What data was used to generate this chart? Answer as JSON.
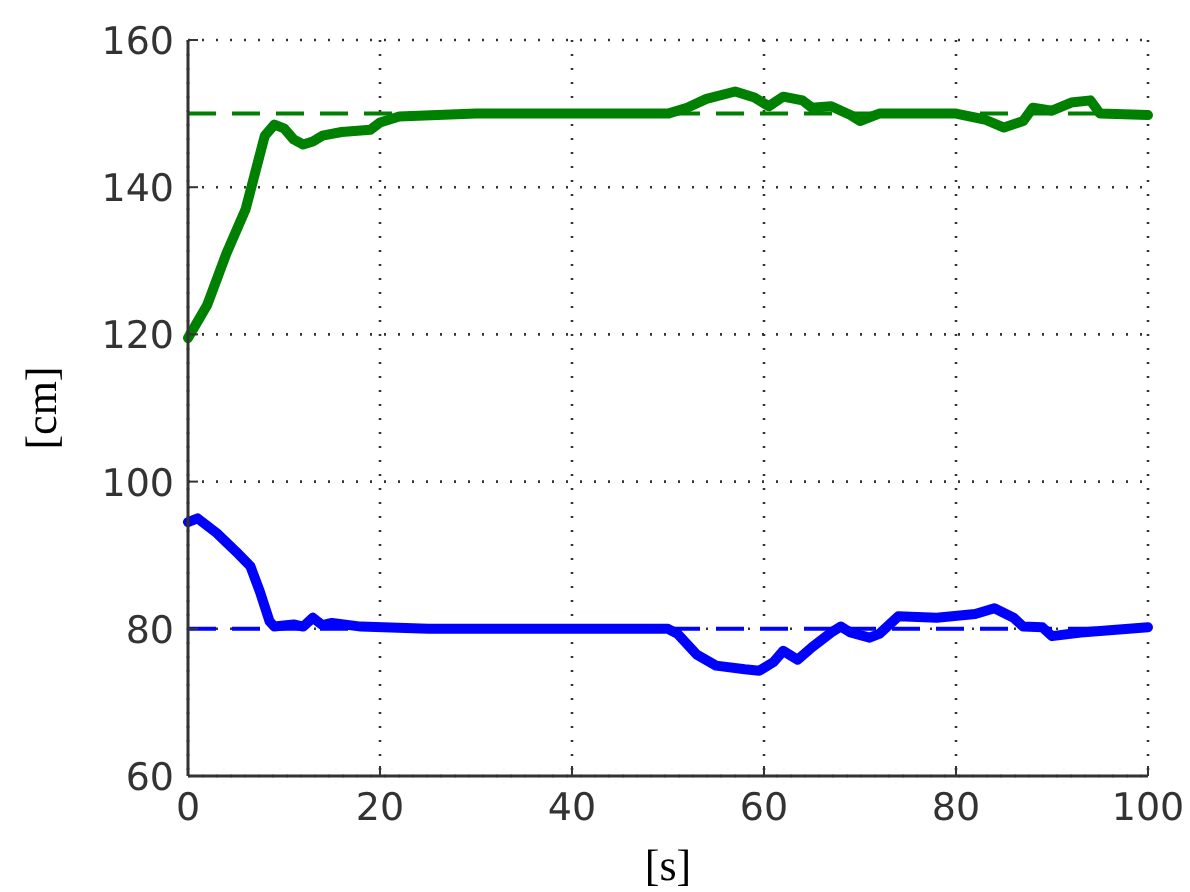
{
  "chart_data": {
    "type": "line",
    "xlabel": "[s]",
    "ylabel": "[cm]",
    "xlim": [
      0,
      100
    ],
    "ylim": [
      60,
      160
    ],
    "xticks": [
      0,
      20,
      40,
      60,
      80,
      100
    ],
    "yticks": [
      60,
      80,
      100,
      120,
      140,
      160
    ],
    "grid": true,
    "line_style": "solid",
    "ref_lines": [
      {
        "axis": "y",
        "value": 150,
        "color": "#008000",
        "line_style": "dashed"
      },
      {
        "axis": "y",
        "value": 80,
        "color": "#0000ff",
        "line_style": "dashed"
      }
    ],
    "series": [
      {
        "color": "#008000",
        "x": [
          0,
          2,
          4,
          6,
          7,
          8,
          9,
          10,
          11,
          12,
          13,
          14,
          16,
          19,
          20,
          22,
          30,
          40,
          50,
          52,
          54,
          57,
          59,
          60.5,
          62,
          64,
          65,
          67,
          69,
          70,
          72,
          74,
          80,
          83,
          85,
          87,
          88,
          90,
          92,
          94,
          95,
          100
        ],
        "values": [
          119.5,
          124,
          131,
          137,
          142,
          147,
          148.5,
          148,
          146.5,
          145.8,
          146.2,
          147,
          147.5,
          147.8,
          148.8,
          149.6,
          150,
          150,
          150,
          150.8,
          152,
          153,
          152.2,
          151,
          152.3,
          151.8,
          150.8,
          151,
          149.8,
          149,
          150,
          150,
          150,
          149.2,
          148.1,
          149,
          150.8,
          150.4,
          151.5,
          151.8,
          150,
          149.8
        ]
      },
      {
        "color": "#0000ff",
        "x": [
          0,
          1,
          3,
          5,
          6.5,
          7.5,
          8.5,
          9,
          11,
          12,
          13,
          14,
          15,
          18,
          25,
          50,
          51,
          53,
          55,
          58,
          59.5,
          61,
          62,
          63.5,
          65,
          67,
          68,
          69,
          71,
          72,
          74,
          78,
          82,
          84,
          86,
          87,
          89,
          90,
          93,
          96,
          100
        ],
        "values": [
          94.5,
          95,
          93,
          90.5,
          88.5,
          85,
          81,
          80.3,
          80.6,
          80.3,
          81.5,
          80.5,
          80.8,
          80.3,
          80,
          80,
          79.3,
          76.5,
          75,
          74.5,
          74.3,
          75.5,
          77,
          75.8,
          77.5,
          79.5,
          80.3,
          79.5,
          78.8,
          79.3,
          81.7,
          81.5,
          82,
          82.8,
          81.5,
          80.3,
          80.2,
          79,
          79.5,
          79.8,
          80.2
        ]
      }
    ]
  }
}
